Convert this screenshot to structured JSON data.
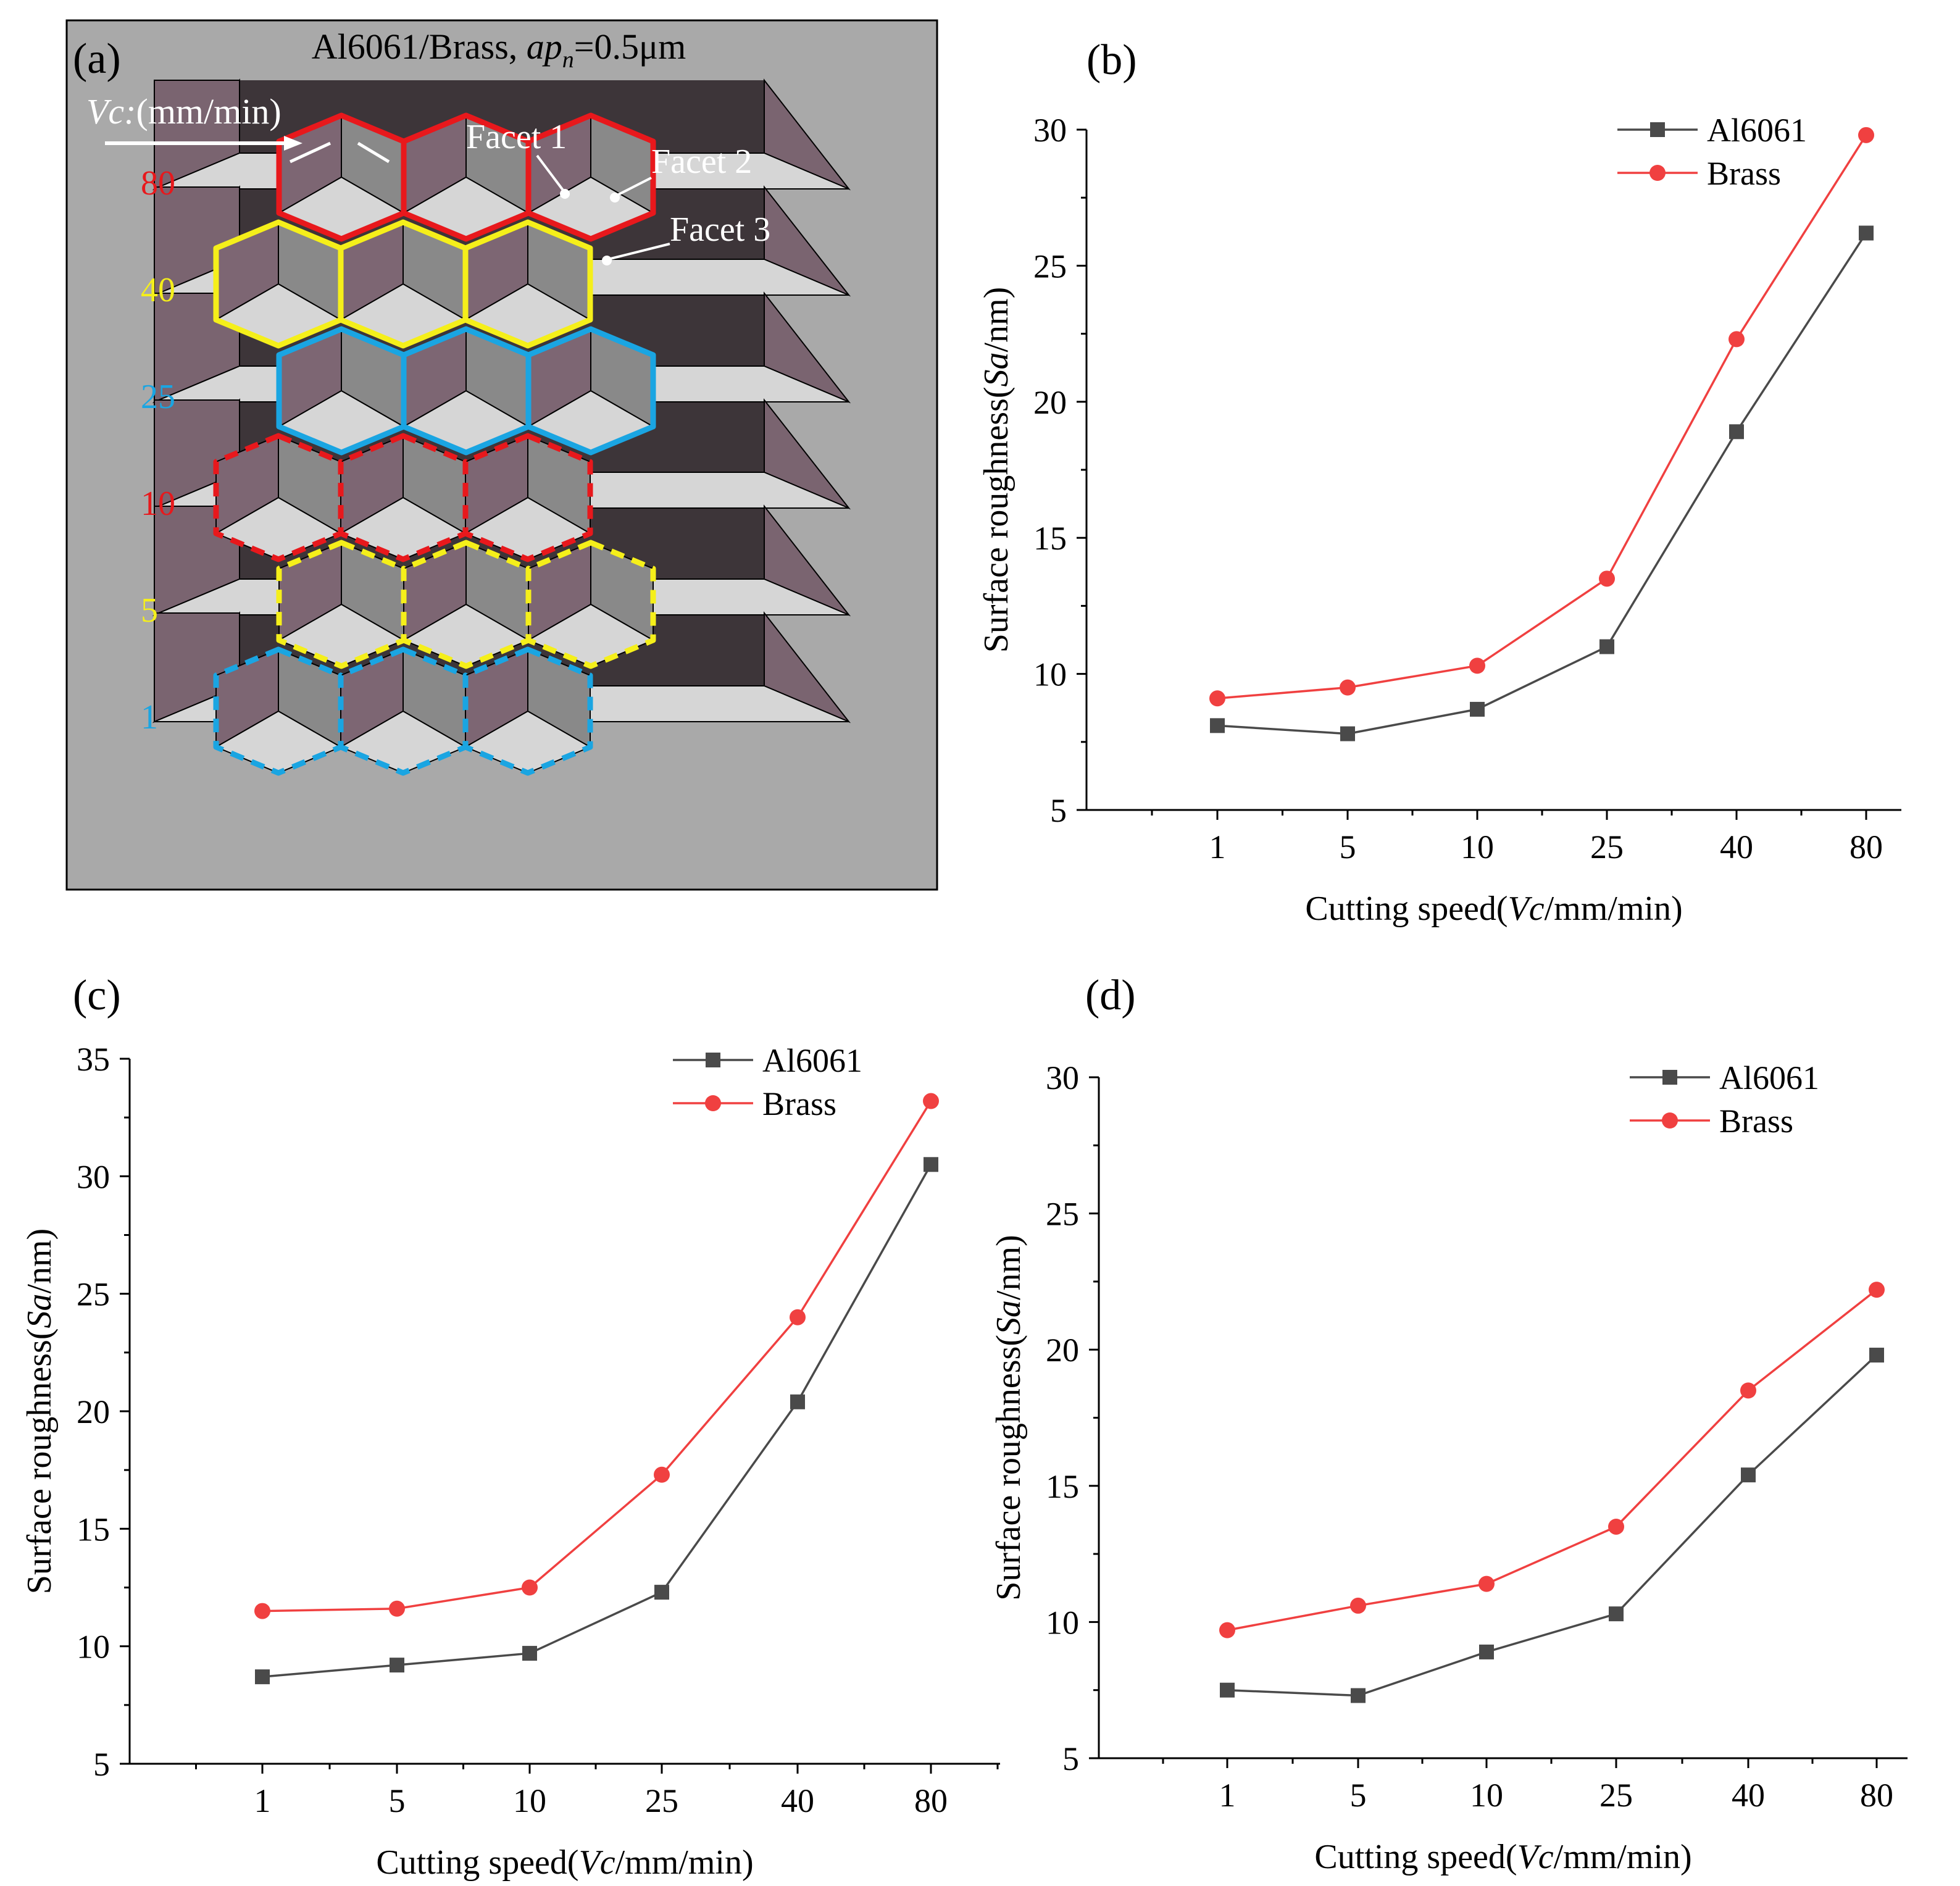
{
  "panel_a": {
    "label": "(a)",
    "title_prefix": "Al6061/Brass, ",
    "title_ap": "ap",
    "title_sub": "n",
    "title_suffix": "=0.5μm",
    "vc_italic": "Vc:",
    "vc_unit": "(mm/min)",
    "facet_1": "Facet 1",
    "facet_2": "Facet 2",
    "facet_3": "Facet 3",
    "rows": [
      {
        "speed": "80",
        "color": "#e8181c",
        "style": "solid"
      },
      {
        "speed": "40",
        "color": "#f5ef1a",
        "style": "solid"
      },
      {
        "speed": "25",
        "color": "#1aa5e2",
        "style": "solid"
      },
      {
        "speed": "10",
        "color": "#e8181c",
        "style": "dashed"
      },
      {
        "speed": "5",
        "color": "#f5ef1a",
        "style": "dashed"
      },
      {
        "speed": "1",
        "color": "#1aa5e2",
        "style": "dashed"
      }
    ]
  },
  "colors": {
    "al6061": "#4a4a4a",
    "brass": "#f04040"
  },
  "chart_data": [
    {
      "id": "b",
      "label": "(b)",
      "type": "line",
      "categories": [
        "1",
        "5",
        "10",
        "25",
        "40",
        "80"
      ],
      "xlabel_prefix": "Cutting speed(",
      "xlabel_italic": "Vc",
      "xlabel_suffix": "/mm/min)",
      "ylabel_prefix": "Surface roughness(",
      "ylabel_italic": "Sa",
      "ylabel_suffix": "/nm)",
      "ylim": [
        5,
        30
      ],
      "yticks": [
        "5",
        "10",
        "15",
        "20",
        "25",
        "30"
      ],
      "legend": "top-right",
      "series": [
        {
          "name": "Al6061",
          "marker": "square",
          "values": [
            8.1,
            7.8,
            8.7,
            11.0,
            18.9,
            26.2
          ]
        },
        {
          "name": "Brass",
          "marker": "circle",
          "values": [
            9.1,
            9.5,
            10.3,
            13.5,
            22.3,
            29.8
          ]
        }
      ]
    },
    {
      "id": "c",
      "label": "(c)",
      "type": "line",
      "categories": [
        "1",
        "5",
        "10",
        "25",
        "40",
        "80"
      ],
      "xlabel_prefix": "Cutting speed(",
      "xlabel_italic": "Vc",
      "xlabel_suffix": "/mm/min)",
      "ylabel_prefix": "Surface roughness(",
      "ylabel_italic": "Sa",
      "ylabel_suffix": "/nm)",
      "ylim": [
        5,
        35
      ],
      "yticks": [
        "5",
        "10",
        "15",
        "20",
        "25",
        "30",
        "35"
      ],
      "legend": "top-right",
      "series": [
        {
          "name": "Al6061",
          "marker": "square",
          "values": [
            8.7,
            9.2,
            9.7,
            12.3,
            20.4,
            30.5
          ]
        },
        {
          "name": "Brass",
          "marker": "circle",
          "values": [
            11.5,
            11.6,
            12.5,
            17.3,
            24.0,
            33.2
          ]
        }
      ]
    },
    {
      "id": "d",
      "label": "(d)",
      "type": "line",
      "categories": [
        "1",
        "5",
        "10",
        "25",
        "40",
        "80"
      ],
      "xlabel_prefix": "Cutting speed(",
      "xlabel_italic": "Vc",
      "xlabel_suffix": "/mm/min)",
      "ylabel_prefix": "Surface roughness(",
      "ylabel_italic": "Sa",
      "ylabel_suffix": "/nm)",
      "ylim": [
        5,
        30
      ],
      "yticks": [
        "5",
        "10",
        "15",
        "20",
        "25",
        "30"
      ],
      "legend": "top-right",
      "series": [
        {
          "name": "Al6061",
          "marker": "square",
          "values": [
            7.5,
            7.3,
            8.9,
            10.3,
            15.4,
            19.8
          ]
        },
        {
          "name": "Brass",
          "marker": "circle",
          "values": [
            9.7,
            10.6,
            11.4,
            13.5,
            18.5,
            22.2
          ]
        }
      ]
    }
  ]
}
